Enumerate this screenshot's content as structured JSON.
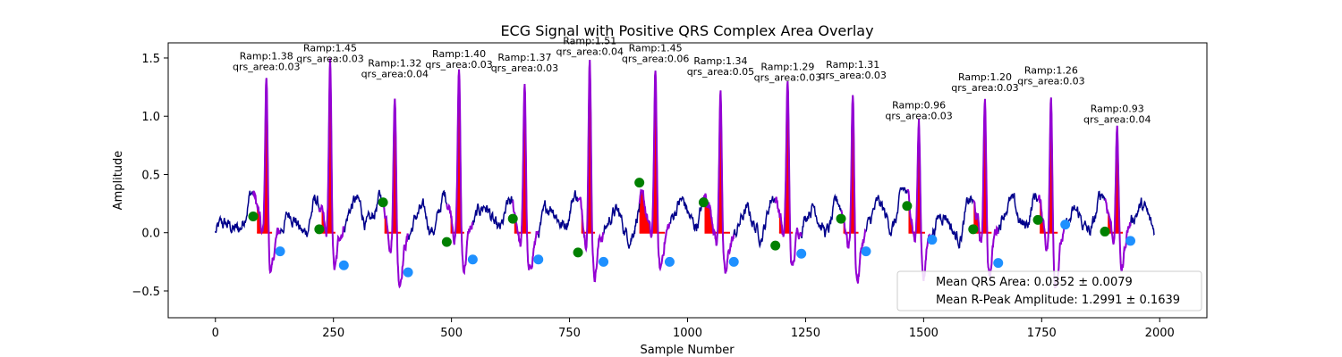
{
  "chart_data": {
    "type": "line",
    "title": "ECG Signal with Positive QRS Complex Area Overlay",
    "xlabel": "Sample Number",
    "ylabel": "Amplitude",
    "xlim": [
      -100,
      2100
    ],
    "ylim": [
      -0.73,
      1.63
    ],
    "xticks": [
      0,
      250,
      500,
      750,
      1000,
      1250,
      1500,
      1750,
      2000
    ],
    "yticks": [
      -0.5,
      0.0,
      0.5,
      1.0,
      1.5
    ],
    "legend": {
      "location": "lower-right",
      "entries": [
        "Mean QRS Area: 0.0352 ± 0.0079",
        "Mean R-Peak Amplitude: 1.2991 ± 0.1639"
      ]
    },
    "colors": {
      "signal": "#00008b",
      "qrs_segment": "#9400d3",
      "qrs_fill": "#ff0000",
      "onset_marker": "#008000",
      "offset_marker": "#1e90ff"
    },
    "beats": [
      {
        "r_x": 108,
        "ramp": 1.38,
        "ramp_label": "Ramp:1.38",
        "area_label": "qrs_area:0.03",
        "onset": [
          80,
          0.14
        ],
        "offset": [
          137,
          -0.16
        ],
        "width": 20
      },
      {
        "r_x": 243,
        "ramp": 1.45,
        "ramp_label": "Ramp:1.45",
        "area_label": "qrs_area:0.03",
        "onset": [
          220,
          0.03
        ],
        "offset": [
          272,
          -0.28
        ],
        "width": 18
      },
      {
        "r_x": 380,
        "ramp": 1.32,
        "ramp_label": "Ramp:1.32",
        "area_label": "qrs_area:0.04",
        "onset": [
          355,
          0.26
        ],
        "offset": [
          408,
          -0.34
        ],
        "width": 22
      },
      {
        "r_x": 516,
        "ramp": 1.4,
        "ramp_label": "Ramp:1.40",
        "area_label": "qrs_area:0.03",
        "onset": [
          490,
          -0.08
        ],
        "offset": [
          545,
          -0.23
        ],
        "width": 18
      },
      {
        "r_x": 655,
        "ramp": 1.37,
        "ramp_label": "Ramp:1.37",
        "area_label": "qrs_area:0.03",
        "onset": [
          630,
          0.12
        ],
        "offset": [
          684,
          -0.23
        ],
        "width": 22
      },
      {
        "r_x": 793,
        "ramp": 1.51,
        "ramp_label": "Ramp:1.51",
        "area_label": "qrs_area:0.04",
        "onset": [
          768,
          -0.17
        ],
        "offset": [
          822,
          -0.25
        ],
        "width": 18
      },
      {
        "r_x": 932,
        "ramp": 1.45,
        "ramp_label": "Ramp:1.45",
        "area_label": "qrs_area:0.06",
        "onset": [
          898,
          0.43
        ],
        "offset": [
          962,
          -0.25
        ],
        "width": 34
      },
      {
        "r_x": 1070,
        "ramp": 1.34,
        "ramp_label": "Ramp:1.34",
        "area_label": "qrs_area:0.05",
        "onset": [
          1034,
          0.26
        ],
        "offset": [
          1098,
          -0.25
        ],
        "width": 34
      },
      {
        "r_x": 1212,
        "ramp": 1.29,
        "ramp_label": "Ramp:1.29",
        "area_label": "qrs_area:0.03",
        "onset": [
          1186,
          -0.11
        ],
        "offset": [
          1241,
          -0.18
        ],
        "width": 18
      },
      {
        "r_x": 1350,
        "ramp": 1.31,
        "ramp_label": "Ramp:1.31",
        "area_label": "qrs_area:0.03",
        "onset": [
          1325,
          0.12
        ],
        "offset": [
          1378,
          -0.16
        ],
        "width": 20
      },
      {
        "r_x": 1490,
        "ramp": 0.96,
        "ramp_label": "Ramp:0.96",
        "area_label": "qrs_area:0.03",
        "onset": [
          1465,
          0.23
        ],
        "offset": [
          1518,
          -0.06
        ],
        "width": 22
      },
      {
        "r_x": 1630,
        "ramp": 1.2,
        "ramp_label": "Ramp:1.20",
        "area_label": "qrs_area:0.03",
        "onset": [
          1605,
          0.03
        ],
        "offset": [
          1658,
          -0.26
        ],
        "width": 24
      },
      {
        "r_x": 1770,
        "ramp": 1.26,
        "ramp_label": "Ramp:1.26",
        "area_label": "qrs_area:0.03",
        "onset": [
          1742,
          0.11
        ],
        "offset": [
          1800,
          0.07
        ],
        "width": 24
      },
      {
        "r_x": 1910,
        "ramp": 0.93,
        "ramp_label": "Ramp:0.93",
        "area_label": "qrs_area:0.04",
        "onset": [
          1884,
          0.01
        ],
        "offset": [
          1938,
          -0.07
        ],
        "width": 20
      }
    ]
  }
}
